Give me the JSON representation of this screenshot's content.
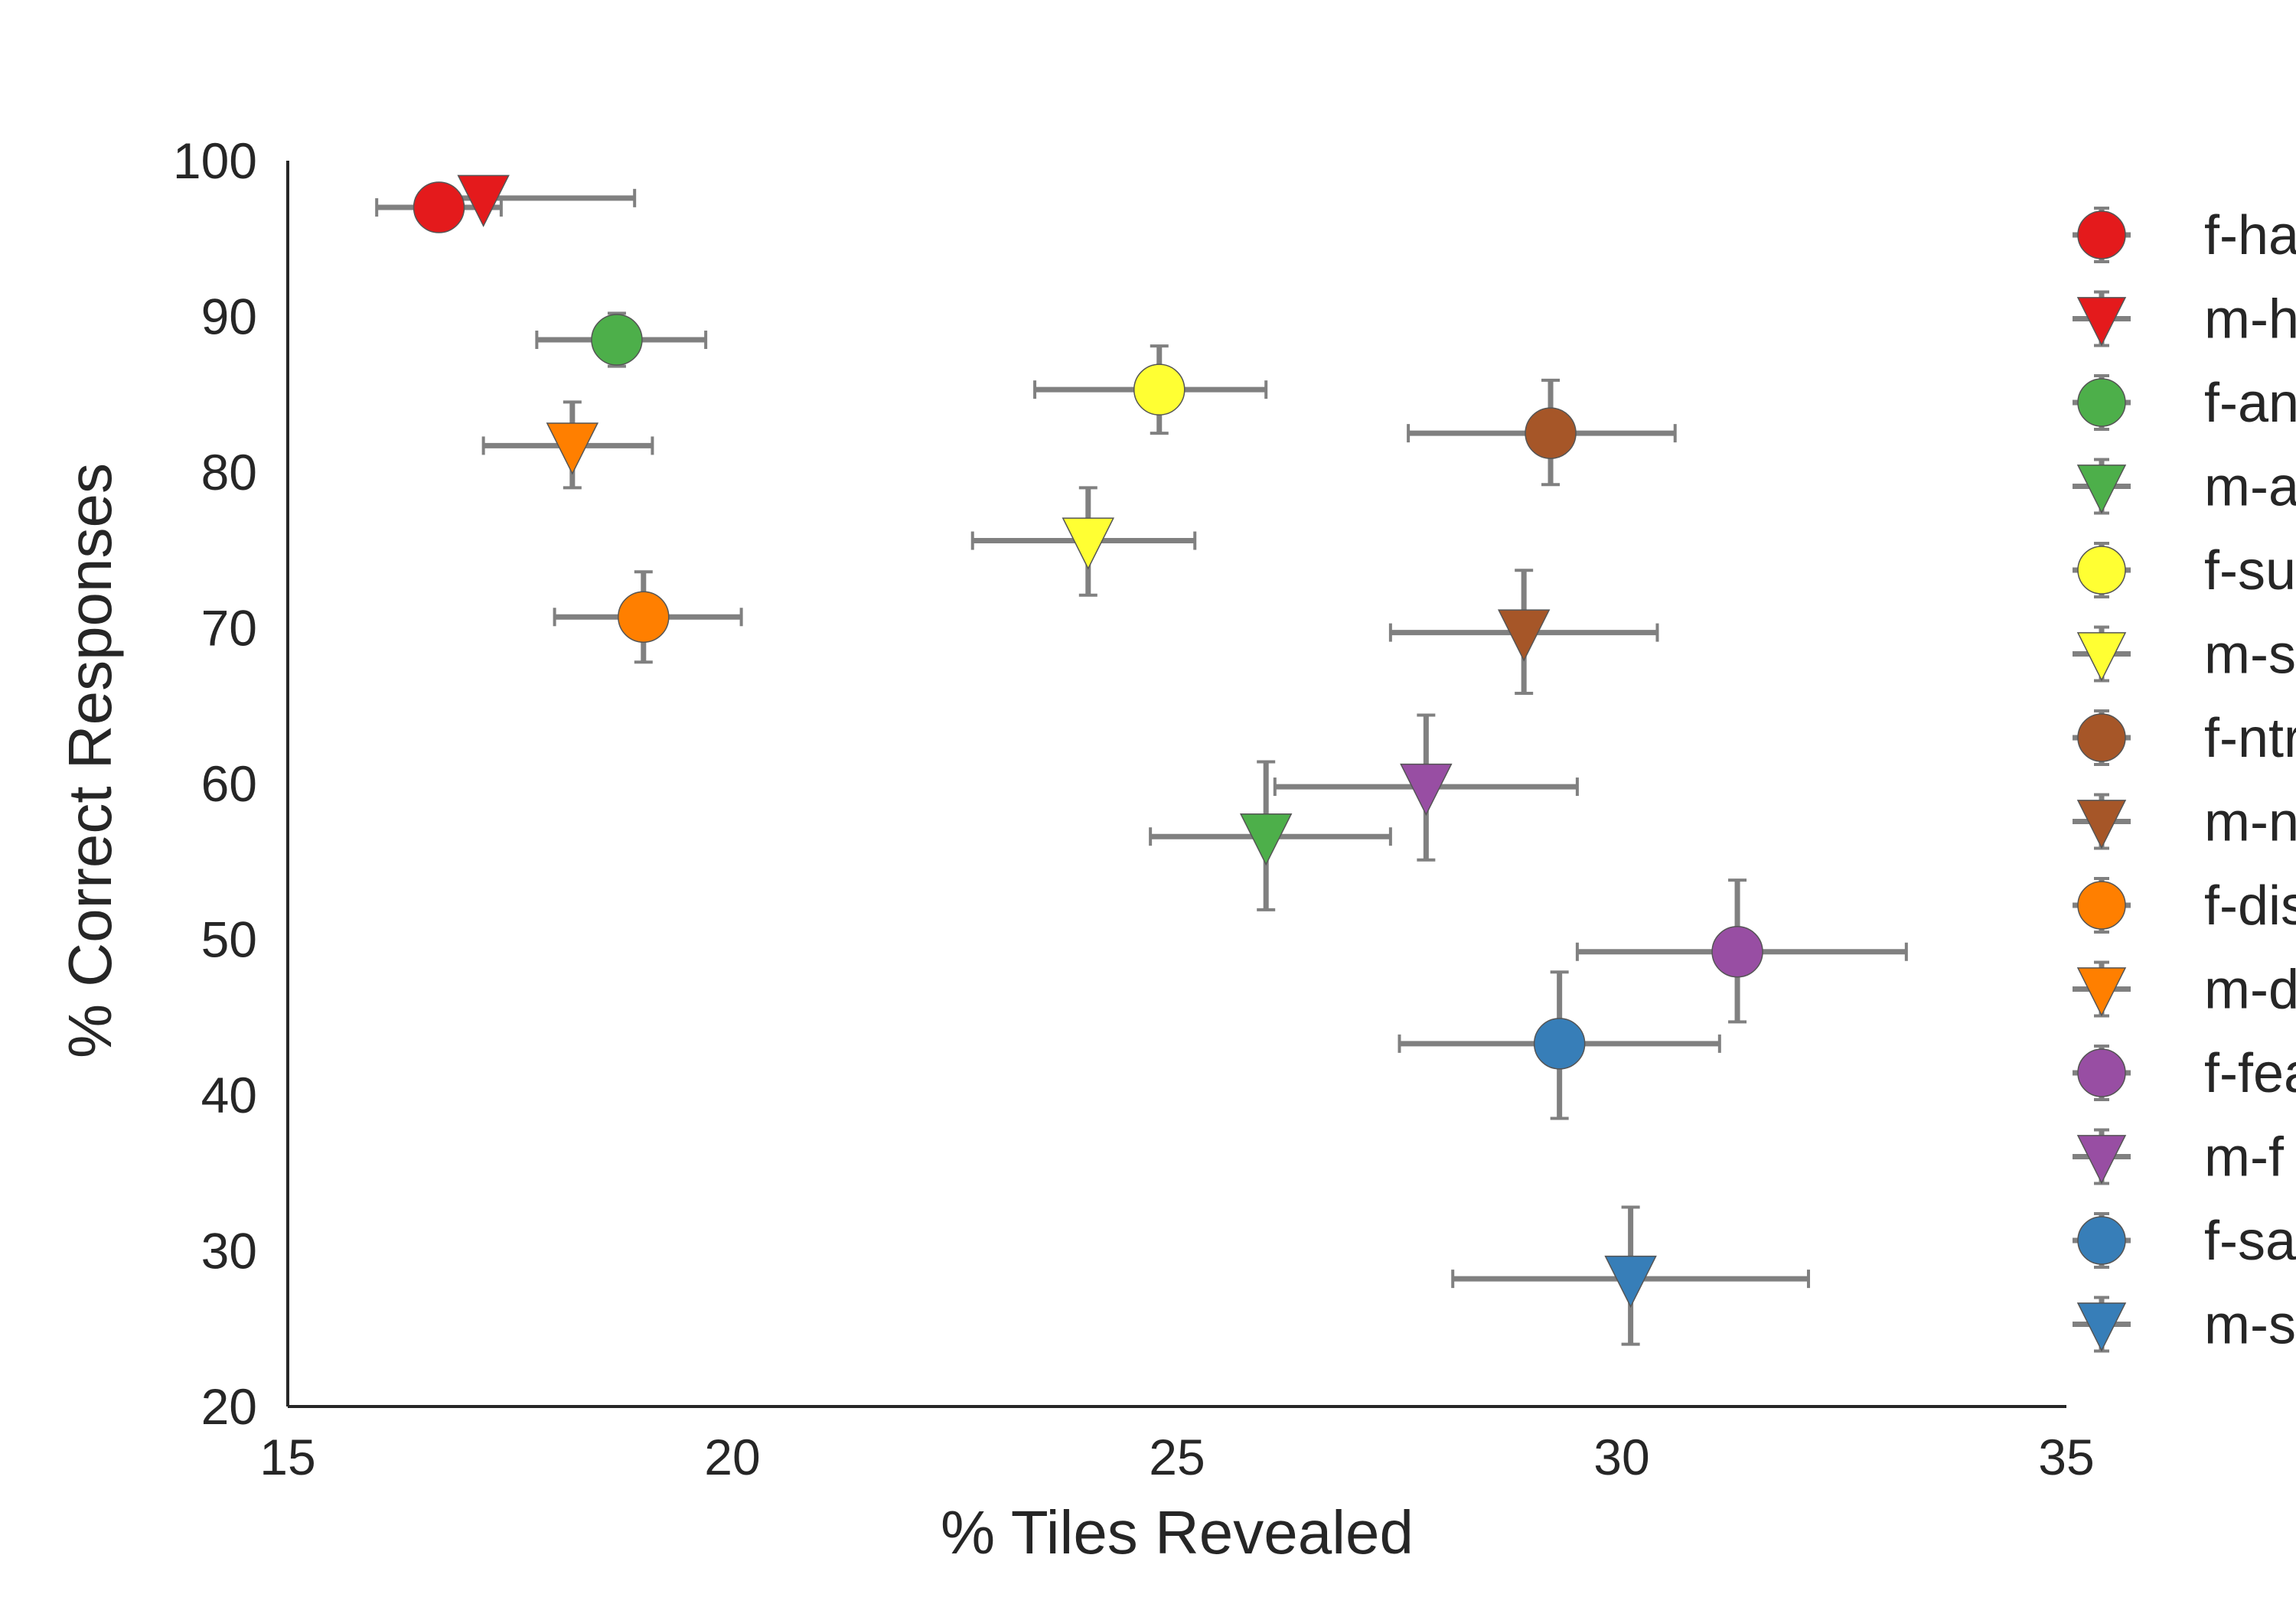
{
  "chart_data": {
    "type": "scatter",
    "title": "",
    "xlabel": "% Tiles Revealed",
    "ylabel": "% Correct Responses",
    "xlim": [
      15,
      35
    ],
    "ylim": [
      20,
      100
    ],
    "xticks": [
      "15",
      "20",
      "25",
      "30",
      "35"
    ],
    "yticks": [
      "20",
      "30",
      "40",
      "50",
      "60",
      "70",
      "80",
      "90",
      "100"
    ],
    "grid": false,
    "legend_position": "right",
    "error_bar_color": "#808080",
    "series": [
      {
        "name": "f-ha",
        "color": "#e41a1c",
        "marker": "circle",
        "x": 16.7,
        "y": 97.0,
        "xerr": [
          16.0,
          17.4
        ],
        "yerr": [
          96.5,
          97.5
        ]
      },
      {
        "name": "m-h",
        "color": "#e41a1c",
        "marker": "triangle-down",
        "x": 17.2,
        "y": 97.6,
        "xerr": [
          16.7,
          18.9
        ],
        "yerr": [
          97.1,
          98.1
        ]
      },
      {
        "name": "f-an",
        "color": "#4daf4a",
        "marker": "circle",
        "x": 18.7,
        "y": 88.5,
        "xerr": [
          17.8,
          19.7
        ],
        "yerr": [
          86.8,
          90.2
        ]
      },
      {
        "name": "m-a",
        "color": "#4daf4a",
        "marker": "triangle-down",
        "x": 26.0,
        "y": 56.6,
        "xerr": [
          24.7,
          27.4
        ],
        "yerr": [
          51.9,
          61.4
        ]
      },
      {
        "name": "f-su",
        "color": "#ffff33",
        "marker": "circle",
        "x": 24.8,
        "y": 85.3,
        "xerr": [
          23.4,
          26.0
        ],
        "yerr": [
          82.5,
          88.1
        ]
      },
      {
        "name": "m-s",
        "color": "#ffff33",
        "marker": "triangle-down",
        "x": 24.0,
        "y": 75.6,
        "xerr": [
          22.7,
          25.2
        ],
        "yerr": [
          72.1,
          79.0
        ]
      },
      {
        "name": "f-ntr",
        "color": "#a65628",
        "marker": "circle",
        "x": 29.2,
        "y": 82.5,
        "xerr": [
          27.6,
          30.6
        ],
        "yerr": [
          79.2,
          85.9
        ]
      },
      {
        "name": "m-n",
        "color": "#a65628",
        "marker": "triangle-down",
        "x": 28.9,
        "y": 69.7,
        "xerr": [
          27.4,
          30.4
        ],
        "yerr": [
          65.8,
          73.7
        ]
      },
      {
        "name": "f-dis",
        "color": "#ff7f00",
        "marker": "circle",
        "x": 19.0,
        "y": 70.7,
        "xerr": [
          18.0,
          20.1
        ],
        "yerr": [
          67.8,
          73.6
        ]
      },
      {
        "name": "m-d",
        "color": "#ff7f00",
        "marker": "triangle-down",
        "x": 18.2,
        "y": 81.7,
        "xerr": [
          17.2,
          19.1
        ],
        "yerr": [
          79.0,
          84.5
        ]
      },
      {
        "name": "f-fea",
        "color": "#984ea3",
        "marker": "circle",
        "x": 31.3,
        "y": 49.2,
        "xerr": [
          29.5,
          33.2
        ],
        "yerr": [
          44.7,
          53.8
        ]
      },
      {
        "name": "m-f",
        "color": "#984ea3",
        "marker": "triangle-down",
        "x": 27.8,
        "y": 59.8,
        "xerr": [
          26.1,
          29.5
        ],
        "yerr": [
          55.1,
          64.4
        ]
      },
      {
        "name": "f-sa",
        "color": "#377eb8",
        "marker": "circle",
        "x": 29.3,
        "y": 43.3,
        "xerr": [
          27.5,
          31.1
        ],
        "yerr": [
          38.5,
          47.9
        ]
      },
      {
        "name": "m-s",
        "color": "#377eb8",
        "marker": "triangle-down",
        "x": 30.1,
        "y": 28.2,
        "xerr": [
          28.1,
          32.1
        ],
        "yerr": [
          24.0,
          32.8
        ]
      }
    ]
  }
}
